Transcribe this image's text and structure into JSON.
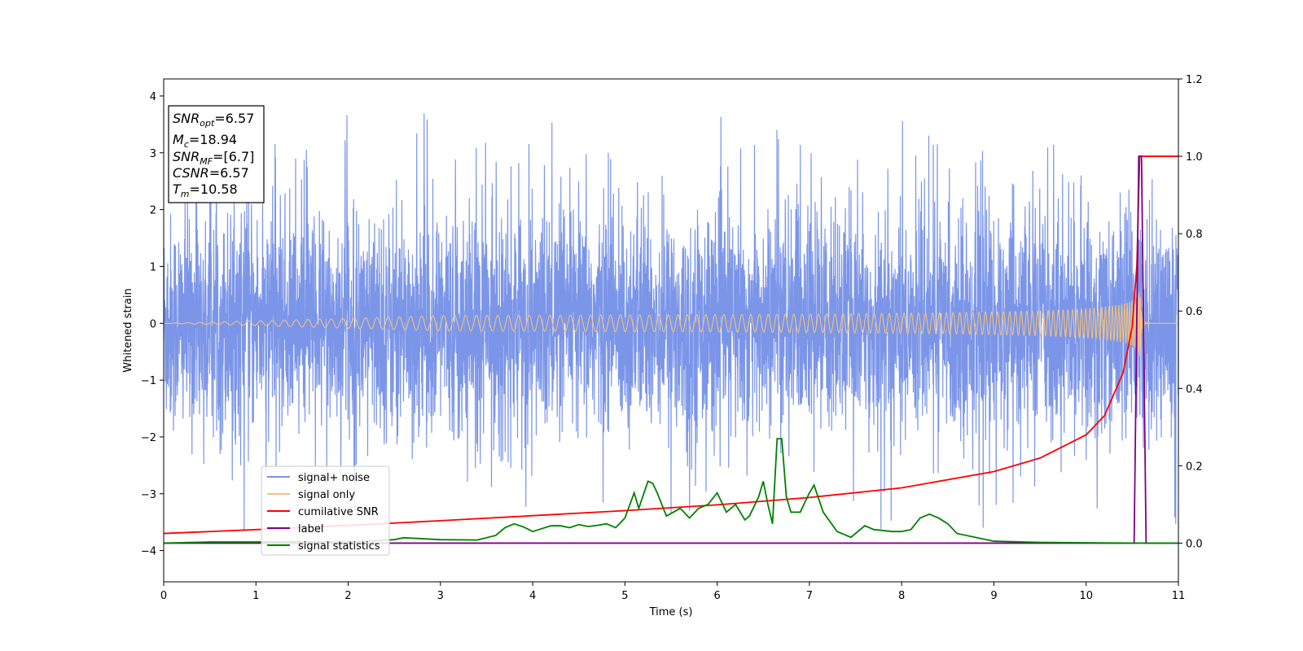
{
  "chart_data": {
    "type": "line",
    "xlabel": "Time (s)",
    "ylabel": "Whitened strain",
    "xlim": [
      0,
      11
    ],
    "ylim": [
      -4.55,
      4.3
    ],
    "y2lim": [
      -0.1,
      1.2
    ],
    "x_ticks": [
      "0",
      "1",
      "2",
      "3",
      "4",
      "5",
      "6",
      "7",
      "8",
      "9",
      "10",
      "11"
    ],
    "y_ticks": [
      "4",
      "3",
      "2",
      "1",
      "0",
      "−1",
      "−2",
      "−3",
      "−4"
    ],
    "y2_ticks": [
      "1.2",
      "1.0",
      "0.8",
      "0.6",
      "0.4",
      "0.2",
      "0.0"
    ],
    "legend": {
      "placement": "lower-left",
      "entries": [
        "signal+ noise",
        "signal only",
        "cumilative SNR",
        "label",
        "signal statistics"
      ]
    },
    "annotation": {
      "lines": [
        {
          "base": "SNR",
          "sub": "opt",
          "value": "=6.57"
        },
        {
          "base": "M",
          "sub": "c",
          "value": "=18.94"
        },
        {
          "base": "SNR",
          "sub": "MF",
          "value": "=[6.7]"
        },
        {
          "base": "CSNR",
          "sub": "",
          "value": "=6.57"
        },
        {
          "base": "T",
          "sub": "m",
          "value": "=10.58"
        }
      ]
    },
    "series": [
      {
        "key": "noise",
        "axis": "left",
        "color": "#7b95e8",
        "noise_band": {
          "core_sigma": 0.95,
          "spike_max": 3.9,
          "spike_min": -4.15
        }
      },
      {
        "key": "signal",
        "axis": "left",
        "color": "#f5c27a",
        "chirp": {
          "merger_time": 10.58,
          "peak_amplitude": 0.6
        }
      },
      {
        "key": "csnr",
        "axis": "right",
        "color": "#ff0000",
        "x": [
          0,
          1,
          2,
          3,
          4,
          5,
          6,
          7,
          8,
          9,
          9.5,
          10,
          10.2,
          10.4,
          10.5,
          10.55,
          10.58,
          11
        ],
        "y": [
          0.025,
          0.035,
          0.046,
          0.058,
          0.071,
          0.084,
          0.099,
          0.118,
          0.143,
          0.185,
          0.22,
          0.28,
          0.33,
          0.44,
          0.56,
          0.72,
          1.0,
          1.0
        ]
      },
      {
        "key": "label",
        "axis": "right",
        "color": "#800080",
        "x": [
          0,
          10.52,
          10.57,
          10.6,
          10.65,
          11
        ],
        "y": [
          0,
          0,
          1.0,
          1.0,
          0,
          0
        ]
      },
      {
        "key": "stats",
        "axis": "right",
        "color": "#008000",
        "x": [
          0,
          0.5,
          1,
          1.5,
          2,
          2.5,
          2.6,
          3,
          3.4,
          3.6,
          3.7,
          3.8,
          3.9,
          4.0,
          4.2,
          4.3,
          4.4,
          4.5,
          4.6,
          4.7,
          4.8,
          4.9,
          5.0,
          5.1,
          5.15,
          5.25,
          5.3,
          5.35,
          5.4,
          5.45,
          5.6,
          5.7,
          5.8,
          5.9,
          6.0,
          6.1,
          6.2,
          6.3,
          6.35,
          6.45,
          6.5,
          6.55,
          6.6,
          6.65,
          6.7,
          6.75,
          6.8,
          6.9,
          7.0,
          7.05,
          7.15,
          7.3,
          7.45,
          7.6,
          7.7,
          7.9,
          8.0,
          8.1,
          8.2,
          8.3,
          8.4,
          8.5,
          8.6,
          9.0,
          9.5,
          10.0,
          10.5,
          11
        ],
        "y": [
          0.0,
          0.003,
          0.003,
          0.004,
          0.003,
          0.009,
          0.014,
          0.009,
          0.008,
          0.02,
          0.04,
          0.05,
          0.042,
          0.03,
          0.045,
          0.045,
          0.04,
          0.048,
          0.043,
          0.046,
          0.05,
          0.04,
          0.065,
          0.13,
          0.09,
          0.16,
          0.155,
          0.13,
          0.1,
          0.07,
          0.09,
          0.065,
          0.09,
          0.1,
          0.13,
          0.08,
          0.1,
          0.06,
          0.07,
          0.12,
          0.16,
          0.1,
          0.05,
          0.27,
          0.27,
          0.12,
          0.08,
          0.08,
          0.13,
          0.15,
          0.08,
          0.03,
          0.015,
          0.045,
          0.035,
          0.03,
          0.03,
          0.035,
          0.065,
          0.075,
          0.065,
          0.05,
          0.025,
          0.005,
          0.002,
          0.001,
          0.0,
          0.0
        ]
      }
    ]
  }
}
